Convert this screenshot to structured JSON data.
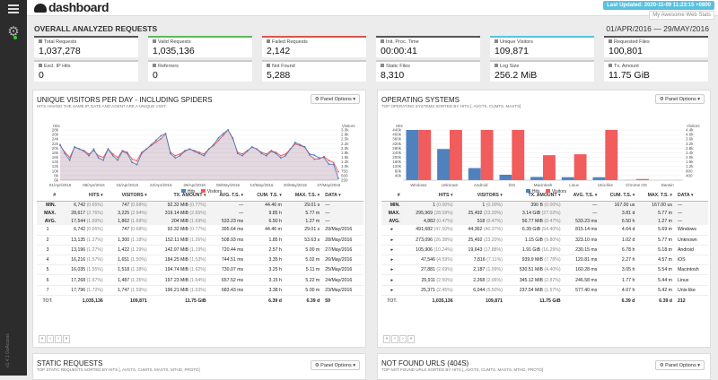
{
  "header": {
    "title": "dashboard",
    "last_updated": "Last Updated: 2020-11-09 11:23:15 +0800",
    "site_name": "My Awesome Web Stats"
  },
  "overall": {
    "title": "OVERALL ANALYZED REQUESTS",
    "date_range": "01/APR/2016 — 29/MAY/2016",
    "cards": [
      {
        "label": "Total Requests",
        "value": "1,037,278",
        "color": "#555555"
      },
      {
        "label": "Valid Requests",
        "value": "1,035,136",
        "color": "#5cb85c"
      },
      {
        "label": "Failed Requests",
        "value": "2,142",
        "color": "#d9534f"
      },
      {
        "label": "Init. Proc. Time",
        "value": "00:00:41",
        "color": "#555555"
      },
      {
        "label": "Unique Visitors",
        "value": "109,871",
        "color": "#5bc0de"
      },
      {
        "label": "Requested Files",
        "value": "100,801",
        "color": "#555555"
      },
      {
        "label": "Excl. IP Hits",
        "value": "0",
        "color": "#cccccc"
      },
      {
        "label": "Referrers",
        "value": "0",
        "color": "#cccccc"
      },
      {
        "label": "Not Found",
        "value": "5,288",
        "color": "#cccccc"
      },
      {
        "label": "Static Files",
        "value": "8,310",
        "color": "#cccccc"
      },
      {
        "label": "Log Size",
        "value": "256.2 MiB",
        "color": "#cccccc"
      },
      {
        "label": "Tx. Amount",
        "value": "11.75 GiB",
        "color": "#cccccc"
      }
    ]
  },
  "colors": {
    "hits": "#4f81bd",
    "visitors": "#f15c5c"
  },
  "visitors_panel": {
    "title": "UNIQUE VISITORS PER DAY - INCLUDING SPIDERS",
    "subtitle": "HITS HAVING THE SAME IP, DATE AND AGENT ARE A UNIQUE VISIT.",
    "options": "⚙ Panel Options ▾",
    "y_left_title": "Hits",
    "y_right_title": "Visitors",
    "y_left_ticks": [
      "28k",
      "26k",
      "24k",
      "22k",
      "20k",
      "18k",
      "16k",
      "14k",
      "12k",
      "10k",
      "8k",
      "6k"
    ],
    "y_right_ticks": [
      "3.0k",
      "2.8k",
      "2.5k",
      "2.2k",
      "2.0k",
      "1.8k",
      "1.5k",
      "1.2k",
      "1.0k",
      "750",
      "500",
      "250"
    ],
    "x_ticks": [
      "01/Apr/2016",
      "08/Apr/2016",
      "15/Apr/2016",
      "22/Apr/2016",
      "29/Apr/2016",
      "06/May/2016",
      "13/May/2016",
      "20/May/2016",
      "27/May/2016"
    ],
    "legend": [
      "Hits",
      "Visitors"
    ],
    "columns": [
      "#",
      "HITS ▾",
      "VISITORS ▾",
      "TX. AMOUNT ▾",
      "AVG. T.S. ▾",
      "CUM. T.S. ▾",
      "MAX. T.S. ▾",
      "DATA ▾"
    ],
    "summary": [
      [
        "MIN.",
        "6,742",
        "(0.65%)",
        "747",
        "(0.68%)",
        "92.32 MiB",
        "(0.77%)",
        "—",
        "44.46 m",
        "29.01 s",
        "—"
      ],
      [
        "MAX.",
        "28,617",
        "(2.76%)",
        "3,225",
        "(2.94%)",
        "319.14 MiB",
        "(2.65%)",
        "—",
        "9.85 h",
        "5.77 m",
        "—"
      ],
      [
        "AVG.",
        "17,544",
        "(1.69%)",
        "1,862",
        "(1.69%)",
        "204 MiB",
        "(1.69%)",
        "533.23 ms",
        "6.50 h",
        "1.27 m",
        "—"
      ]
    ],
    "rows": [
      [
        "1",
        "6,742",
        "(0.65%)",
        "747",
        "(0.68%)",
        "92.32 MiB",
        "(0.77%)",
        "395.64 ms",
        "44.46 m",
        "29.01 s",
        "29/May/2016"
      ],
      [
        "2",
        "13,135",
        "(1.27%)",
        "1,300",
        "(1.18%)",
        "152.11 MiB",
        "(1.26%)",
        "508.93 ms",
        "1.85 h",
        "53.63 s",
        "28/May/2016"
      ],
      [
        "3",
        "13,196",
        "(1.27%)",
        "1,422",
        "(1.29%)",
        "142.97 MiB",
        "(1.19%)",
        "720.44 ms",
        "2.57 h",
        "5.00 m",
        "27/May/2016"
      ],
      [
        "4",
        "16,216",
        "(1.57%)",
        "1,651",
        "(1.50%)",
        "184.25 MiB",
        "(1.53%)",
        "744.51 ms",
        "3.35 h",
        "5.02 m",
        "26/May/2016"
      ],
      [
        "5",
        "16,035",
        "(1.55%)",
        "1,518",
        "(1.38%)",
        "194.74 MiB",
        "(1.62%)",
        "730.07 ms",
        "3.25 h",
        "5.11 m",
        "25/May/2016"
      ],
      [
        "6",
        "17,268",
        "(1.67%)",
        "1,487",
        "(1.35%)",
        "197.23 MiB",
        "(1.64%)",
        "657.52 ms",
        "3.15 h",
        "5.22 m",
        "24/May/2016"
      ],
      [
        "7",
        "17,796",
        "(1.72%)",
        "1,747",
        "(1.59%)",
        "196.21 MiB",
        "(1.63%)",
        "683.43 ms",
        "3.38 h",
        "5.00 m",
        "23/May/2016"
      ]
    ],
    "total": [
      "TOT.",
      "1,035,136",
      "",
      "109,871",
      "",
      "11.75 GiB",
      "",
      "",
      "6.39 d",
      "6.39 d",
      "59"
    ]
  },
  "os_panel": {
    "title": "OPERATING SYSTEMS",
    "subtitle": "TOP OPERATING SYSTEMS SORTED BY HITS [, AVGTS, CUMTS, MAXTS]",
    "options": "⚙ Panel Options ▾",
    "y_left_title": "Hits",
    "y_right_title": "Visitors",
    "y_left_ticks": [
      "440k",
      "400k",
      "360k",
      "320k",
      "280k",
      "240k",
      "200k",
      "160k",
      "120k",
      "80k",
      "40k"
    ],
    "y_right_ticks": [
      "4.4k",
      "4.0k",
      "3.6k",
      "3.2k",
      "2.8k",
      "2.4k",
      "2.0k",
      "1.6k",
      "1.2k",
      "800",
      "400"
    ],
    "legend": [
      "Hits",
      "Visitors"
    ],
    "columns": [
      "#",
      "HITS ▾",
      "VISITORS ▾",
      "TX. AMOUNT ▾",
      "AVG. T.S. ▾",
      "CUM. T.S. ▾",
      "MAX. T.S. ▾",
      "DATA ▾"
    ],
    "summary": [
      [
        "MIN.",
        "1",
        "(0.00%)",
        "1",
        "(0.00%)",
        "390 B",
        "(0.00%)",
        "—",
        "167.00 us",
        "167.00 us",
        "—"
      ],
      [
        "MAX.",
        "295,969",
        "(28.59%)",
        "25,492",
        "(23.20%)",
        "3.14 GiB",
        "(27.02%)",
        "—",
        "3.81 d",
        "5.77 m",
        "—"
      ],
      [
        "AVG.",
        "4,882",
        "(0.47%)",
        "518",
        "(0.47%)",
        "56.77 MiB",
        "(0.47%)",
        "533.23 ms",
        "6.50 h",
        "1.27 m",
        "—"
      ]
    ],
    "rows": [
      [
        "▸",
        "491,682",
        "(47.50%)",
        "44,362",
        "(40.37%)",
        "6.39 GiB",
        "(54.40%)",
        "815.14 ms",
        "4.64 d",
        "5.69 m",
        "Windows"
      ],
      [
        "▸",
        "273,096",
        "(26.38%)",
        "25,492",
        "(23.20%)",
        "1.15 GiB",
        "(9.80%)",
        "323.10 ms",
        "1.02 d",
        "5.77 m",
        "Unknown"
      ],
      [
        "▸",
        "105,906",
        "(10.24%)",
        "19,643",
        "(17.88%)",
        "1.91 GiB",
        "(16.29%)",
        "230.15 ms",
        "6.78 h",
        "5.18 m",
        "Android"
      ],
      [
        "▸",
        "47,546",
        "(4.59%)",
        "7,816",
        "(7.11%)",
        "939.9 MiB",
        "(7.78%)",
        "120.81 ms",
        "2.27 h",
        "4.57 m",
        "iOS"
      ],
      [
        "▸",
        "27,881",
        "(2.69%)",
        "2,187",
        "(1.99%)",
        "530.51 MiB",
        "(4.40%)",
        "160.28 ms",
        "3.05 h",
        "5.54 m",
        "Macintosh"
      ],
      [
        "▸",
        "25,911",
        "(2.50%)",
        "2,268",
        "(2.06%)",
        "345.12 MiB",
        "(2.87%)",
        "246.58 ms",
        "1.77 h",
        "5.44 m",
        "Linux"
      ],
      [
        "▸",
        "25,371",
        "(2.45%)",
        "6,044",
        "(5.50%)",
        "237.54 MiB",
        "(1.97%)",
        "577.40 ms",
        "4.07 h",
        "5.42 m",
        "Unix-like"
      ]
    ],
    "total": [
      "TOT.",
      "1,035,136",
      "",
      "109,871",
      "",
      "11.75 GiB",
      "",
      "",
      "6.39 d",
      "6.39 d",
      "212"
    ],
    "chart_data": {
      "type": "bar",
      "categories": [
        "Windows",
        "Unknown",
        "Android",
        "iOS",
        "Macintosh",
        "Linux",
        "Unix-like",
        "Chrome OS",
        "Darwin"
      ],
      "series": [
        {
          "name": "Hits",
          "values": [
            491682,
            273096,
            105906,
            47546,
            27881,
            25911,
            25371,
            1000,
            1
          ]
        },
        {
          "name": "Visitors",
          "values": [
            44362,
            25492,
            19643,
            7816,
            2187,
            2268,
            6044,
            100,
            1
          ]
        }
      ],
      "ylim_hits": [
        0,
        440000
      ],
      "ylim_visitors": [
        0,
        4400
      ]
    }
  },
  "chart_data": {
    "type": "line",
    "x": [
      "01/Apr/2016",
      "02/Apr/2016",
      "03/Apr/2016",
      "04/Apr/2016",
      "05/Apr/2016",
      "06/Apr/2016",
      "07/Apr/2016",
      "08/Apr/2016",
      "09/Apr/2016",
      "10/Apr/2016",
      "11/Apr/2016",
      "12/Apr/2016",
      "13/Apr/2016",
      "14/Apr/2016",
      "15/Apr/2016",
      "16/Apr/2016",
      "17/Apr/2016",
      "18/Apr/2016",
      "19/Apr/2016",
      "20/Apr/2016",
      "21/Apr/2016",
      "22/Apr/2016",
      "23/Apr/2016",
      "24/Apr/2016",
      "25/Apr/2016",
      "26/Apr/2016",
      "27/Apr/2016",
      "28/Apr/2016",
      "29/Apr/2016",
      "30/Apr/2016",
      "01/May/2016",
      "02/May/2016",
      "03/May/2016",
      "04/May/2016",
      "05/May/2016",
      "06/May/2016",
      "07/May/2016",
      "08/May/2016",
      "09/May/2016",
      "10/May/2016",
      "11/May/2016",
      "12/May/2016",
      "13/May/2016",
      "14/May/2016",
      "15/May/2016",
      "16/May/2016",
      "17/May/2016",
      "18/May/2016",
      "19/May/2016",
      "20/May/2016",
      "21/May/2016",
      "22/May/2016",
      "23/May/2016",
      "24/May/2016",
      "25/May/2016",
      "26/May/2016",
      "27/May/2016",
      "28/May/2016",
      "29/May/2016"
    ],
    "series": [
      {
        "name": "Hits",
        "values": [
          22000,
          18000,
          15000,
          21000,
          20000,
          19000,
          17000,
          20000,
          16000,
          15000,
          20000,
          17000,
          15000,
          19000,
          18000,
          14000,
          13000,
          18000,
          20000,
          22000,
          24000,
          26000,
          27000,
          18000,
          16000,
          17000,
          19000,
          20000,
          19000,
          18000,
          17000,
          20000,
          22000,
          25000,
          27000,
          28617,
          25000,
          18000,
          17000,
          19000,
          21000,
          20000,
          18000,
          17000,
          19000,
          18000,
          16000,
          17000,
          20000,
          23000,
          22000,
          21000,
          17796,
          17268,
          16035,
          16216,
          13196,
          13135,
          6742
        ]
      },
      {
        "name": "Visitors",
        "values": [
          2300,
          1900,
          1600,
          2200,
          2100,
          2000,
          1800,
          2000,
          1700,
          1600,
          2100,
          1800,
          1600,
          2000,
          1900,
          1500,
          1400,
          1900,
          2100,
          2300,
          2500,
          2700,
          3000,
          1900,
          1700,
          1800,
          2000,
          2100,
          2000,
          1900,
          1800,
          2100,
          2300,
          2600,
          2900,
          3225,
          2700,
          1900,
          1800,
          2000,
          2200,
          2100,
          1900,
          1800,
          2000,
          1900,
          1700,
          1800,
          2100,
          2400,
          2300,
          2200,
          1747,
          1487,
          1518,
          1651,
          1422,
          1300,
          747
        ]
      }
    ],
    "ylim_hits": [
      6000,
      28617
    ],
    "ylim_visitors": [
      250,
      3225
    ]
  },
  "bottom_left": {
    "title": "STATIC REQUESTS",
    "subtitle": "TOP STATIC REQUESTS SORTED BY HITS [, AVGTS, CUMTS, MAXTS, MTHD, PROTO]",
    "options": "⚙ Panel Options ▾"
  },
  "bottom_right": {
    "title": "NOT FOUND URLS (404S)",
    "subtitle": "TOP NOT FOUND URLS SORTED BY HITS [, AVGTS, CUMTS, MAXTS, MTHD, PROTO]",
    "options": "⚙ Panel Options ▾"
  },
  "pager": [
    "«",
    "‹",
    "›",
    "»"
  ],
  "sidebar": {
    "version": "v1.4.1 GoAccess"
  }
}
